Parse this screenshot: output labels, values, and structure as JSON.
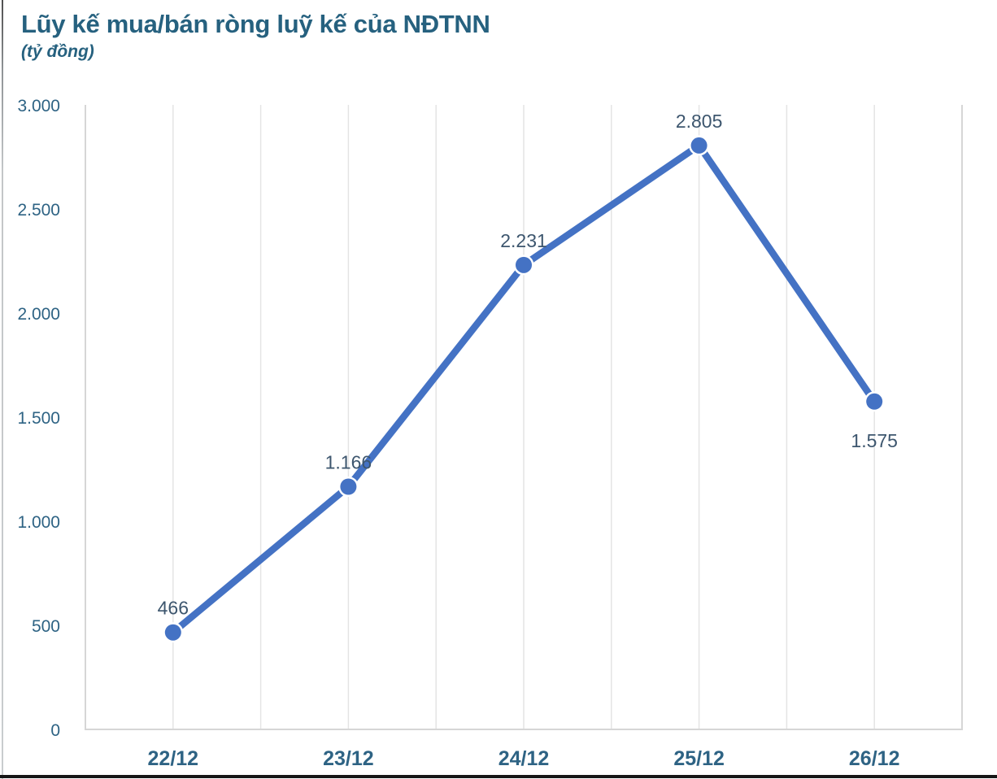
{
  "header": {
    "title": "Lũy kế mua/bán ròng luỹ kế của NĐTNN",
    "subtitle": "(tỷ đồng)"
  },
  "chart_data": {
    "type": "line",
    "title": "Lũy kế mua/bán ròng luỹ kế của NĐTNN",
    "unit_label": "(tỷ đồng)",
    "categories": [
      "22/12",
      "23/12",
      "24/12",
      "25/12",
      "26/12"
    ],
    "values": [
      466,
      1166,
      2231,
      2805,
      1575
    ],
    "point_labels": [
      "466",
      "1.166",
      "2.231",
      "2.805",
      "1.575"
    ],
    "label_positions": [
      "above",
      "above",
      "above",
      "above",
      "below"
    ],
    "yticks": [
      {
        "value": 0,
        "label": "0"
      },
      {
        "value": 500,
        "label": "500"
      },
      {
        "value": 1000,
        "label": "1.000"
      },
      {
        "value": 1500,
        "label": "1.500"
      },
      {
        "value": 2000,
        "label": "2.000"
      },
      {
        "value": 2500,
        "label": "2.500"
      },
      {
        "value": 3000,
        "label": "3.000"
      }
    ],
    "ylim": [
      0,
      3000
    ],
    "xlabel": "",
    "ylabel": "tỷ đồng",
    "grid": "vertical-only",
    "legend_position": "none",
    "colors": {
      "line": "#4472c4",
      "marker": "#4472c4",
      "data_label": "#3d566e",
      "axis_tick_label": "#2e6384",
      "gridline": "#e4e4e4",
      "axis_line": "#d6d6d6",
      "title": "#26617f"
    }
  }
}
